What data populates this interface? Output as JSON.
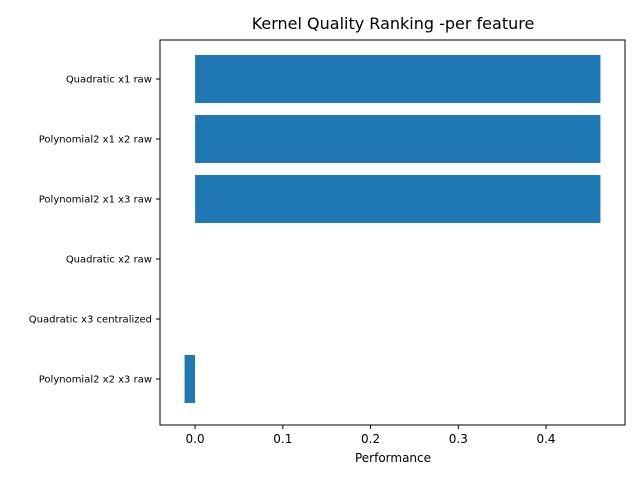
{
  "chart_data": {
    "type": "bar",
    "orientation": "horizontal",
    "title": "Kernel Quality Ranking -per feature",
    "xlabel": "Performance",
    "ylabel": "",
    "categories": [
      "Quadratic x1 raw",
      "Polynomial2 x1 x2 raw",
      "Polynomial2 x1 x3 raw",
      "Quadratic x2 raw",
      "Quadratic x3 centralized",
      "Polynomial2 x2 x3 raw"
    ],
    "values": [
      0.462,
      0.462,
      0.462,
      0.0,
      0.0,
      -0.012
    ],
    "xlim": [
      -0.04,
      0.49
    ],
    "xticks": [
      0.0,
      0.1,
      0.2,
      0.3,
      0.4
    ],
    "xtick_labels": [
      "0.0",
      "0.1",
      "0.2",
      "0.3",
      "0.4"
    ],
    "bar_color": "#1f77b4",
    "grid": false,
    "legend": "none"
  }
}
